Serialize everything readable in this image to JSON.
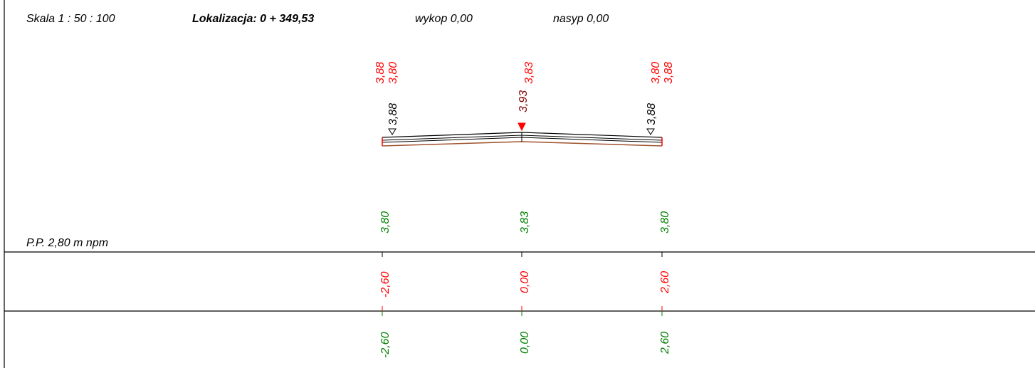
{
  "header": {
    "scale": "Skala 1 : 50 : 100",
    "location": "Lokalizacja:  0 + 349,53",
    "cut": "wykop  0,00",
    "fill": "nasyp  0,00"
  },
  "datum_label": "P.P. 2,80 m npm",
  "colors": {
    "design": "#ff0000",
    "existing": "#008000",
    "black": "#000000",
    "dark_red": "#800000",
    "subgrade": "#a0522d"
  },
  "stations": [
    {
      "key": "left",
      "top_design_a": "3,88",
      "top_design_b": "3,80",
      "pavement": "3,88",
      "marker": "open-triangle-icon",
      "terrain": "3,80",
      "offset_design": "-2,60",
      "offset_existing": "-2,60"
    },
    {
      "key": "center",
      "top_design_a": "",
      "top_design_b": "3,83",
      "pavement": "3,93",
      "marker": "filled-red-triangle-icon",
      "terrain": "3,83",
      "offset_design": "0,00",
      "offset_existing": "0,00"
    },
    {
      "key": "right",
      "top_design_a": "3,80",
      "top_design_b": "3,88",
      "pavement": "3,88",
      "marker": "open-triangle-icon",
      "terrain": "3,80",
      "offset_design": "2,60",
      "offset_existing": "2,60"
    }
  ]
}
